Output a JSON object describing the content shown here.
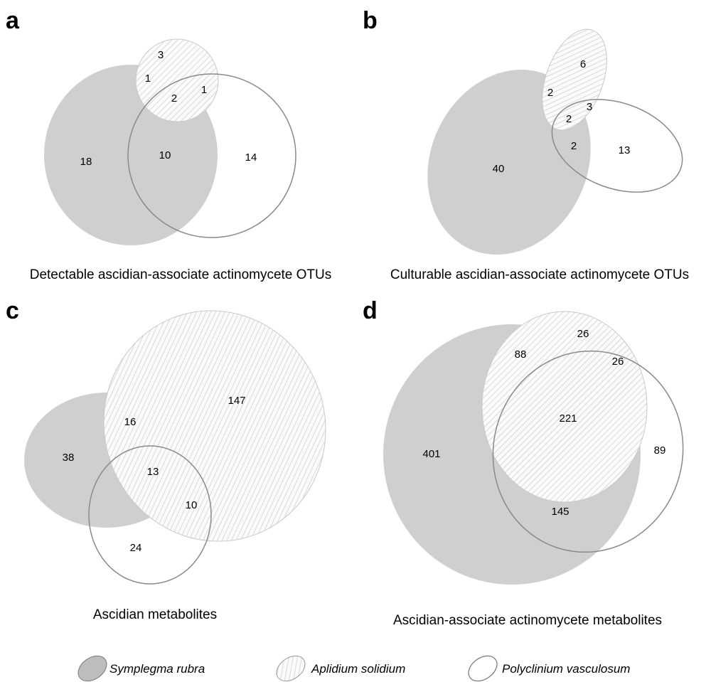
{
  "panels": {
    "a": {
      "letter": "a",
      "caption": "Detectable ascidian-associate actinomycete OTUs",
      "counts": [
        "3",
        "1",
        "1",
        "2",
        "18",
        "10",
        "14"
      ]
    },
    "b": {
      "letter": "b",
      "caption": "Culturable ascidian-associate actinomycete OTUs",
      "counts": [
        "6",
        "2",
        "3",
        "2",
        "2",
        "40",
        "13"
      ]
    },
    "c": {
      "letter": "c",
      "caption": "Ascidian metabolites",
      "counts": [
        "147",
        "16",
        "38",
        "13",
        "10",
        "24"
      ]
    },
    "d": {
      "letter": "d",
      "caption": "Ascidian-associate actinomycete metabolites",
      "counts": [
        "26",
        "88",
        "26",
        "221",
        "401",
        "89",
        "145"
      ]
    }
  },
  "legend": {
    "symplegma": "Symplegma rubra",
    "aplidium": "Aplidium solidium",
    "polyclinium": "Polyclinium vasculosum"
  },
  "colors": {
    "symplegma_fill": "#cfcfcf",
    "aplidium_hatch": "#c6c6c6",
    "polyclinium_stroke": "#8a8a8a"
  }
}
